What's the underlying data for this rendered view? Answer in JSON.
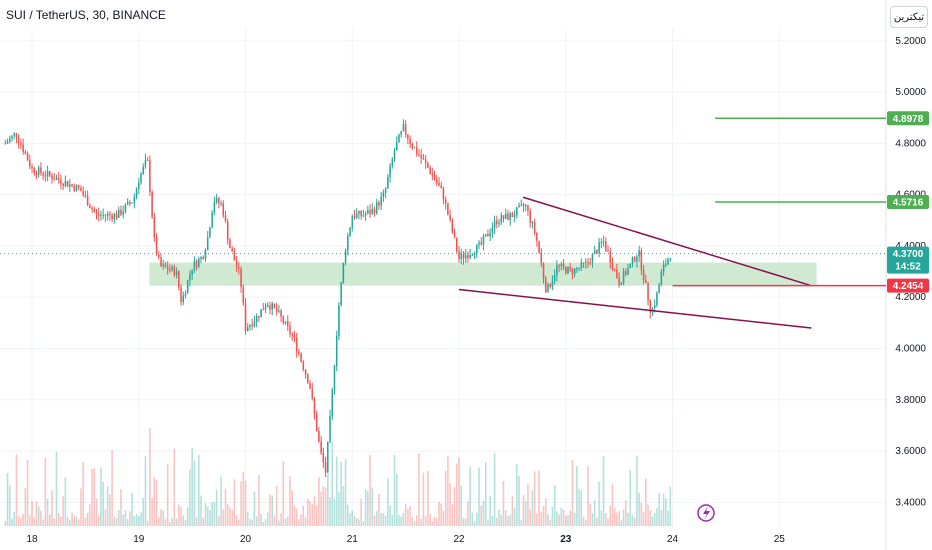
{
  "header": {
    "title": "SUI / TetherUS, 30, BINANCE",
    "brand_button": "تیکترین"
  },
  "chart_data": {
    "type": "candlestick",
    "ylim": [
      3.3,
      5.25
    ],
    "y_ticks": [
      5.2,
      5.0,
      4.8,
      4.6,
      4.4,
      4.2,
      4.0,
      3.8,
      3.6,
      3.4
    ],
    "y_tick_labels": [
      "5.2000",
      "5.0000",
      "4.8000",
      "4.6000",
      "4.4000",
      "4.2000",
      "4.0000",
      "3.8000",
      "3.6000",
      "3.4000"
    ],
    "x_day_range": [
      17.7,
      26.0
    ],
    "x_ticks": [
      18,
      19,
      20,
      21,
      22,
      23,
      24,
      25
    ],
    "x_tick_labels": [
      "18",
      "19",
      "20",
      "21",
      "22",
      "23",
      "24",
      "25"
    ],
    "x_tick_bold": [
      23
    ],
    "price_path": [
      [
        17.75,
        4.8
      ],
      [
        17.85,
        4.84
      ],
      [
        18.0,
        4.7
      ],
      [
        18.25,
        4.66
      ],
      [
        18.45,
        4.62
      ],
      [
        18.6,
        4.52
      ],
      [
        18.8,
        4.52
      ],
      [
        18.95,
        4.58
      ],
      [
        19.0,
        4.66
      ],
      [
        19.08,
        4.74
      ],
      [
        19.15,
        4.4
      ],
      [
        19.2,
        4.32
      ],
      [
        19.35,
        4.3
      ],
      [
        19.4,
        4.18
      ],
      [
        19.5,
        4.32
      ],
      [
        19.6,
        4.36
      ],
      [
        19.65,
        4.44
      ],
      [
        19.7,
        4.58
      ],
      [
        19.78,
        4.56
      ],
      [
        19.85,
        4.4
      ],
      [
        19.95,
        4.28
      ],
      [
        20.0,
        4.08
      ],
      [
        20.1,
        4.12
      ],
      [
        20.2,
        4.18
      ],
      [
        20.3,
        4.14
      ],
      [
        20.45,
        4.04
      ],
      [
        20.6,
        3.86
      ],
      [
        20.7,
        3.6
      ],
      [
        20.75,
        3.52
      ],
      [
        20.8,
        3.76
      ],
      [
        20.87,
        4.15
      ],
      [
        20.93,
        4.38
      ],
      [
        21.0,
        4.52
      ],
      [
        21.1,
        4.52
      ],
      [
        21.2,
        4.54
      ],
      [
        21.3,
        4.6
      ],
      [
        21.4,
        4.78
      ],
      [
        21.48,
        4.86
      ],
      [
        21.55,
        4.8
      ],
      [
        21.65,
        4.74
      ],
      [
        21.75,
        4.68
      ],
      [
        21.85,
        4.6
      ],
      [
        22.0,
        4.35
      ],
      [
        22.2,
        4.4
      ],
      [
        22.35,
        4.5
      ],
      [
        22.5,
        4.52
      ],
      [
        22.62,
        4.56
      ],
      [
        22.72,
        4.44
      ],
      [
        22.82,
        4.22
      ],
      [
        22.92,
        4.32
      ],
      [
        23.05,
        4.3
      ],
      [
        23.2,
        4.33
      ],
      [
        23.35,
        4.42
      ],
      [
        23.5,
        4.26
      ],
      [
        23.6,
        4.32
      ],
      [
        23.68,
        4.38
      ],
      [
        23.75,
        4.24
      ],
      [
        23.8,
        4.14
      ],
      [
        23.85,
        4.2
      ],
      [
        23.9,
        4.3
      ],
      [
        23.98,
        4.37
      ]
    ],
    "annotations": {
      "support_zone": {
        "day_start": 19.1,
        "day_end": 25.35,
        "price_low": 4.245,
        "price_high": 4.335
      },
      "upper_trendline": {
        "from": [
          22.6,
          4.59
        ],
        "to": [
          25.3,
          4.245
        ]
      },
      "lower_trendline": {
        "from": [
          22.0,
          4.23
        ],
        "to": [
          25.3,
          4.08
        ]
      },
      "levels": [
        {
          "price": 4.8978,
          "label": "4.8978",
          "color": "#4caf50",
          "day_start": 24.4
        },
        {
          "price": 4.5716,
          "label": "4.5716",
          "color": "#4caf50",
          "day_start": 24.4
        },
        {
          "price": 4.2454,
          "label": "4.2454",
          "color": "#f23645",
          "day_start": 24.0
        }
      ],
      "current_price": {
        "price": 4.37,
        "label": "4.3700",
        "countdown": "14:52",
        "color": "#26a69a"
      }
    }
  },
  "colors": {
    "up": "#26a69a",
    "down": "#ef5350",
    "grid": "#f0f3fa",
    "zone": "#c8e6c9"
  }
}
